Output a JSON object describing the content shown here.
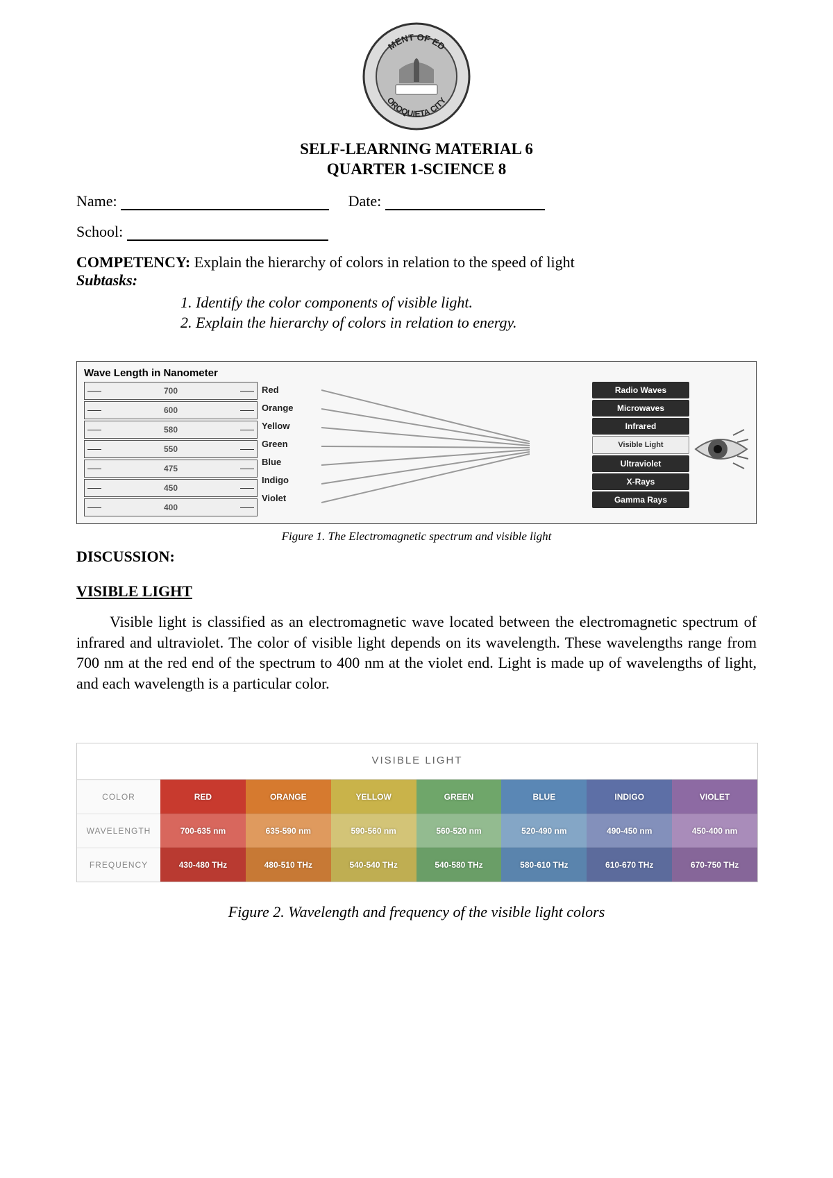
{
  "header": {
    "logo_top": "MENT OF ED",
    "logo_bottom": "OROQUIETA CITY",
    "title_line1": "SELF-LEARNING MATERIAL 6",
    "title_line2": "QUARTER 1-SCIENCE 8"
  },
  "form": {
    "name_label": "Name:",
    "date_label": "Date:",
    "school_label": "School:"
  },
  "competency": {
    "label": "COMPETENCY:",
    "text": "Explain the hierarchy of colors in relation to the speed of light",
    "subtasks_label": "Subtasks:",
    "items": [
      "1.   Identify the color components of visible light.",
      "2.   Explain the hierarchy of colors in relation to energy."
    ]
  },
  "figure1": {
    "wl_title": "Wave Length in Nanometer",
    "wavelengths": [
      "700",
      "600",
      "580",
      "550",
      "475",
      "450",
      "400"
    ],
    "colors": [
      "Red",
      "Orange",
      "Yellow",
      "Green",
      "Blue",
      "Indigo",
      "Violet"
    ],
    "em": [
      "Radio Waves",
      "Microwaves",
      "Infrared",
      "Visible Light",
      "Ultraviolet",
      "X-Rays",
      "Gamma Rays"
    ],
    "caption": "Figure 1. The Electromagnetic spectrum and visible light"
  },
  "discussion": {
    "heading": "DISCUSSION:",
    "section": "VISIBLE LIGHT",
    "paragraph": "Visible light is classified as an electromagnetic wave located between the electromagnetic spectrum of infrared and ultraviolet. The color of visible light depends on its wavelength. These wavelengths range from 700 nm at the red end of the spectrum to 400 nm at the violet end. Light is made up of wavelengths of light, and each wavelength is a particular color."
  },
  "figure2": {
    "title": "VISIBLE LIGHT",
    "row_labels": [
      "COLOR",
      "WAVELENGTH",
      "FREQUENCY"
    ],
    "columns": [
      {
        "name": "RED",
        "wavelength": "700-635 nm",
        "frequency": "430-480 THz",
        "color_bg": "#c83a2e",
        "wl_bg": "#d8675d",
        "fq_bg": "#b93a31"
      },
      {
        "name": "ORANGE",
        "wavelength": "635-590 nm",
        "frequency": "480-510 THz",
        "color_bg": "#d67a2f",
        "wl_bg": "#df9a5e",
        "fq_bg": "#c77935"
      },
      {
        "name": "YELLOW",
        "wavelength": "590-560 nm",
        "frequency": "540-540 THz",
        "color_bg": "#c9b34a",
        "wl_bg": "#d3c477",
        "fq_bg": "#bfae52"
      },
      {
        "name": "GREEN",
        "wavelength": "560-520 nm",
        "frequency": "540-580 THz",
        "color_bg": "#6fa66a",
        "wl_bg": "#93bb90",
        "fq_bg": "#6a9e67"
      },
      {
        "name": "BLUE",
        "wavelength": "520-490 nm",
        "frequency": "580-610 THz",
        "color_bg": "#5a87b5",
        "wl_bg": "#84a6c6",
        "fq_bg": "#5a84ad"
      },
      {
        "name": "INDIGO",
        "wavelength": "490-450 nm",
        "frequency": "610-670 THz",
        "color_bg": "#5d6fa6",
        "wl_bg": "#8390bb",
        "fq_bg": "#5c6b9c"
      },
      {
        "name": "VIOLET",
        "wavelength": "450-400 nm",
        "frequency": "670-750 THz",
        "color_bg": "#8d6aa3",
        "wl_bg": "#a98cba",
        "fq_bg": "#866699"
      }
    ],
    "caption": "Figure 2. Wavelength and frequency of the visible light colors"
  }
}
